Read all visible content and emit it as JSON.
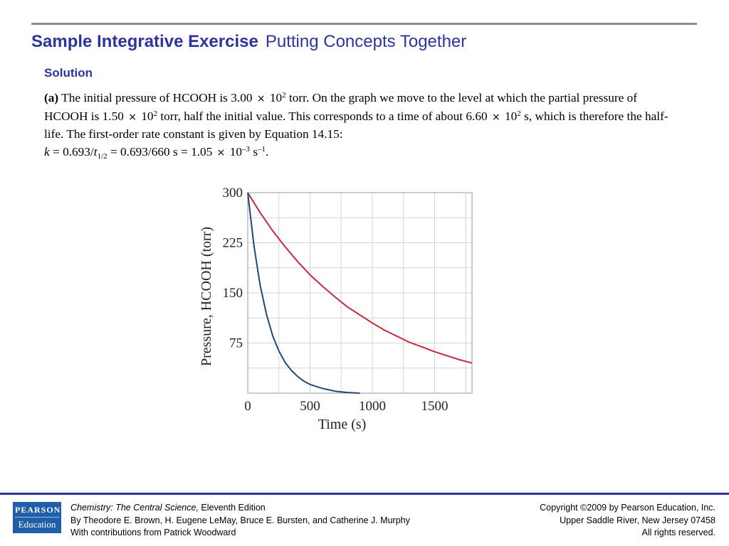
{
  "title": {
    "main": "Sample Integrative Exercise",
    "sub": "Putting Concepts Together"
  },
  "section": "Solution",
  "paragraph": {
    "part_label": "(a)",
    "s1": "The initial pressure of HCOOH is 3.00",
    "times": "×",
    "ten": "10",
    "exp2": "2",
    "s2": "torr. On the graph we move to the level at which the partial pressure of HCOOH is 1.50",
    "s3": "torr, half the initial value. This corresponds to a time of about 6.60",
    "s4": "s, which is therefore the half-life. The first-order rate constant is given by Equation 14.15:",
    "k_var": "k",
    "s5": "= 0.693/",
    "t_var": "t",
    "half": "1/2",
    "s6": "= 0.693/660 s = 1.05",
    "expm3": "–3",
    "s7": " s",
    "expm1": "–1",
    "s8": "."
  },
  "chart_data": {
    "type": "line",
    "xlabel": "Time (s)",
    "ylabel": "Pressure, HCOOH (torr)",
    "x_ticks": [
      "0",
      "500",
      "1000",
      "1500"
    ],
    "y_ticks": [
      "75",
      "150",
      "225",
      "300"
    ],
    "xlim": [
      0,
      1800
    ],
    "ylim": [
      0,
      300
    ],
    "grid": true,
    "series": [
      {
        "color": "#c8283c",
        "x": [
          0,
          100,
          200,
          300,
          400,
          500,
          600,
          700,
          800,
          900,
          1000,
          1100,
          1200,
          1300,
          1400,
          1500,
          1600,
          1700,
          1800
        ],
        "y": [
          300,
          270,
          243,
          219,
          197,
          177,
          160,
          144,
          129,
          117,
          105,
          94,
          85,
          76,
          69,
          62,
          56,
          50,
          45
        ]
      },
      {
        "color": "#1f4a78",
        "x": [
          0,
          50,
          100,
          150,
          200,
          250,
          300,
          350,
          400,
          450,
          500,
          600,
          700,
          800,
          900
        ],
        "y": [
          300,
          220,
          161,
          118,
          86,
          63,
          46,
          34,
          25,
          18,
          13,
          7,
          3,
          1,
          0
        ]
      }
    ]
  },
  "footer": {
    "logo_top": "PEARSON",
    "logo_bottom": "Education",
    "book_title": "Chemistry: The Central Science,",
    "edition": " Eleventh Edition",
    "authors": "By Theodore E. Brown, H. Eugene LeMay, Bruce E. Bursten, and Catherine J. Murphy",
    "contrib": "With contributions from Patrick Woodward",
    "copyright": "Copyright ©2009 by Pearson Education, Inc.",
    "address": "Upper Saddle River, New Jersey 07458",
    "rights": "All rights reserved."
  }
}
